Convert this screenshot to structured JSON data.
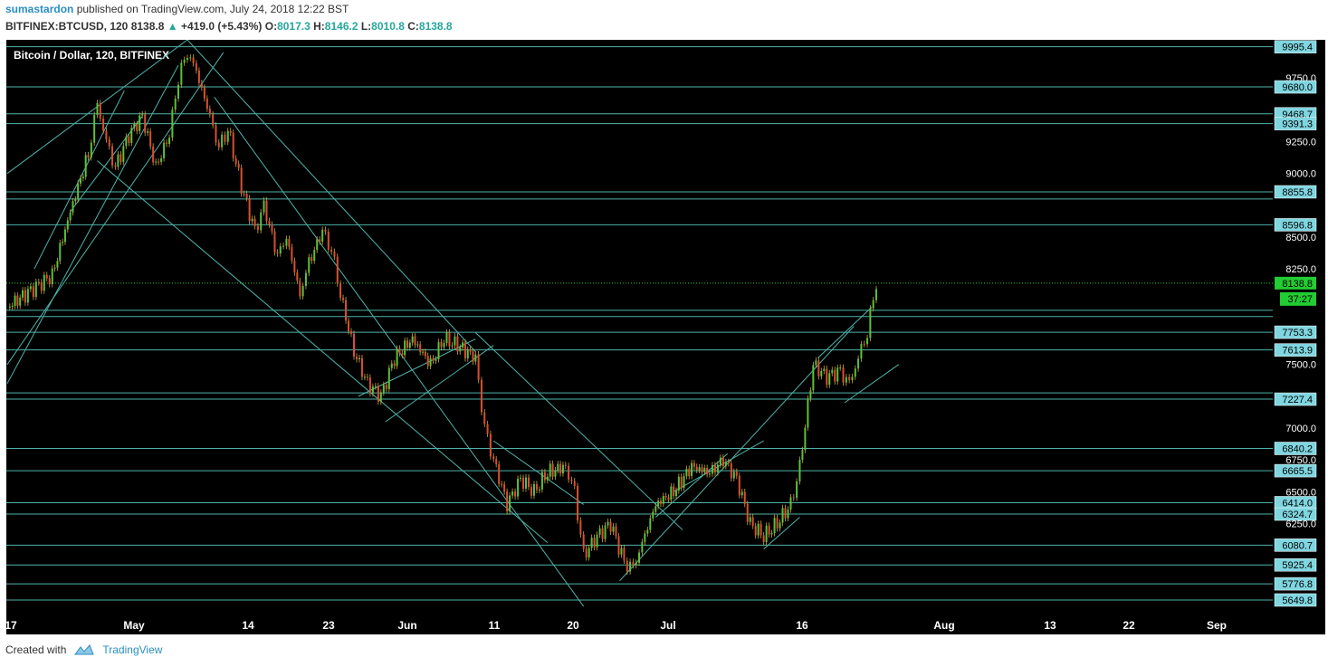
{
  "header": {
    "author": "sumastardon",
    "published": "published on TradingView.com, July 24, 2018 12:22 BST"
  },
  "ohlc": {
    "symbol": "BITFINEX:BTCUSD, 120",
    "last": "8138.8",
    "change": "+419.0 (+5.43%)",
    "o_label": "O:",
    "o": "8017.3",
    "h_label": "H:",
    "h": "8146.2",
    "l_label": "L:",
    "l": "8010.8",
    "c_label": "C:",
    "c": "8138.8"
  },
  "footer": {
    "created_with": "Created with",
    "brand": "TradingView"
  },
  "chart_data": {
    "type": "line",
    "title": "Bitcoin / Dollar, 120, BITFINEX",
    "x_ticks": [
      "17",
      "May",
      "14",
      "23",
      "Jun",
      "11",
      "20",
      "Jul",
      "16",
      "Aug",
      "13",
      "22",
      "Sep"
    ],
    "y_ticks": [
      9750,
      9250,
      9000,
      8500,
      8250,
      7500,
      7000,
      6750,
      6500,
      6250
    ],
    "ylim": [
      5550,
      10050
    ],
    "grid": false,
    "levels": [
      9995.4,
      9680.0,
      9468.7,
      9391.3,
      8855.8,
      8799.4,
      8596.8,
      7925.2,
      7876.6,
      7753.3,
      7613.9,
      7277.0,
      7227.4,
      6840.2,
      6665.5,
      6414.0,
      6324.7,
      6080.7,
      5925.4,
      5776.8,
      5649.8
    ],
    "labeled_levels": [
      "9995.4",
      "9680.0",
      "9468.7",
      "9391.3",
      "8855.8",
      "8596.8",
      "7753.3",
      "7613.9",
      "7227.4",
      "6840.2",
      "6665.5",
      "6414.0",
      "6324.7",
      "6080.7",
      "5925.4",
      "5776.8",
      "5649.8"
    ],
    "last_price": "8138.8",
    "countdown": "37:27",
    "series": [
      {
        "values": [
          [
            0,
            7950
          ],
          [
            4,
            8050
          ],
          [
            10,
            8200
          ],
          [
            14,
            8700
          ],
          [
            18,
            9150
          ],
          [
            20,
            9550
          ],
          [
            22,
            9250
          ],
          [
            24,
            9050
          ],
          [
            27,
            9300
          ],
          [
            30,
            9450
          ],
          [
            33,
            9050
          ],
          [
            36,
            9300
          ],
          [
            38,
            9750
          ],
          [
            40,
            9950
          ],
          [
            42,
            9800
          ],
          [
            45,
            9450
          ],
          [
            47,
            9200
          ],
          [
            49,
            9350
          ],
          [
            52,
            8900
          ],
          [
            55,
            8550
          ],
          [
            57,
            8750
          ],
          [
            60,
            8350
          ],
          [
            62,
            8500
          ],
          [
            65,
            8050
          ],
          [
            67,
            8300
          ],
          [
            70,
            8550
          ],
          [
            72,
            8400
          ],
          [
            74,
            8050
          ],
          [
            77,
            7600
          ],
          [
            80,
            7350
          ],
          [
            83,
            7250
          ],
          [
            86,
            7550
          ],
          [
            90,
            7700
          ],
          [
            94,
            7500
          ],
          [
            97,
            7700
          ],
          [
            100,
            7650
          ],
          [
            104,
            7550
          ],
          [
            106,
            7000
          ],
          [
            108,
            6750
          ],
          [
            111,
            6400
          ],
          [
            114,
            6600
          ],
          [
            117,
            6500
          ],
          [
            120,
            6650
          ],
          [
            124,
            6700
          ],
          [
            126,
            6500
          ],
          [
            128,
            6000
          ],
          [
            131,
            6150
          ],
          [
            134,
            6250
          ],
          [
            137,
            5950
          ],
          [
            139,
            5900
          ],
          [
            141,
            6100
          ],
          [
            144,
            6400
          ],
          [
            148,
            6500
          ],
          [
            152,
            6700
          ],
          [
            156,
            6650
          ],
          [
            159,
            6750
          ],
          [
            162,
            6600
          ],
          [
            165,
            6250
          ],
          [
            168,
            6150
          ],
          [
            171,
            6250
          ],
          [
            174,
            6400
          ],
          [
            176,
            6700
          ],
          [
            179,
            7500
          ],
          [
            182,
            7400
          ],
          [
            185,
            7450
          ],
          [
            187,
            7350
          ],
          [
            189,
            7550
          ],
          [
            191,
            7750
          ],
          [
            193,
            8138.8
          ]
        ]
      }
    ]
  }
}
